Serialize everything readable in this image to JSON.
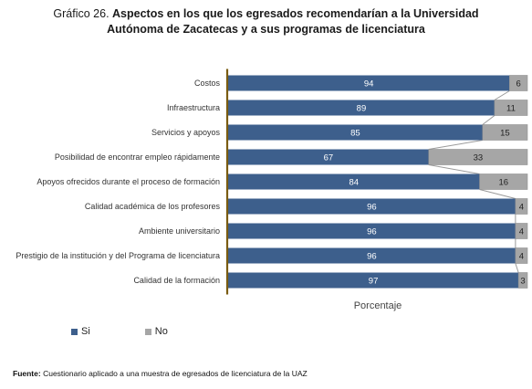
{
  "title": {
    "prefix": "Gráfico 26.",
    "line1": "Aspectos en los que los egresados recomendarían a la Universidad",
    "line2": "Autónoma de Zacatecas y a sus programas de licenciatura"
  },
  "source": {
    "label": "Fuente:",
    "text": "Cuestionario aplicado a una muestra de egresados de licenciatura de la UAZ"
  },
  "legend": {
    "si_label": "Si",
    "no_label": "No"
  },
  "colors": {
    "si": "#3d5f8c",
    "no": "#a6a6a6",
    "axis": "#7a5c12",
    "connector": "#9a9a9a"
  },
  "chart_data": {
    "type": "bar",
    "orientation": "horizontal",
    "stacked": true,
    "stacked_percent": true,
    "categories": [
      "Costos",
      "Infraestructura",
      "Servicios y apoyos",
      "Posibilidad de encontrar empleo rápidamente",
      "Apoyos ofrecidos durante el proceso de formación",
      "Calidad académica de los profesores",
      "Ambiente universitario",
      "Prestigio de la institución y del Programa de licenciatura",
      "Calidad de la formación"
    ],
    "series": [
      {
        "name": "Si",
        "values": [
          94,
          89,
          85,
          67,
          84,
          96,
          96,
          96,
          97
        ]
      },
      {
        "name": "No",
        "values": [
          6,
          11,
          15,
          33,
          16,
          4,
          4,
          4,
          3
        ]
      }
    ],
    "xlabel": "Porcentaje",
    "xlim": [
      0,
      100
    ],
    "grid": false,
    "legend_position": "bottom-left",
    "series_lines": true
  }
}
